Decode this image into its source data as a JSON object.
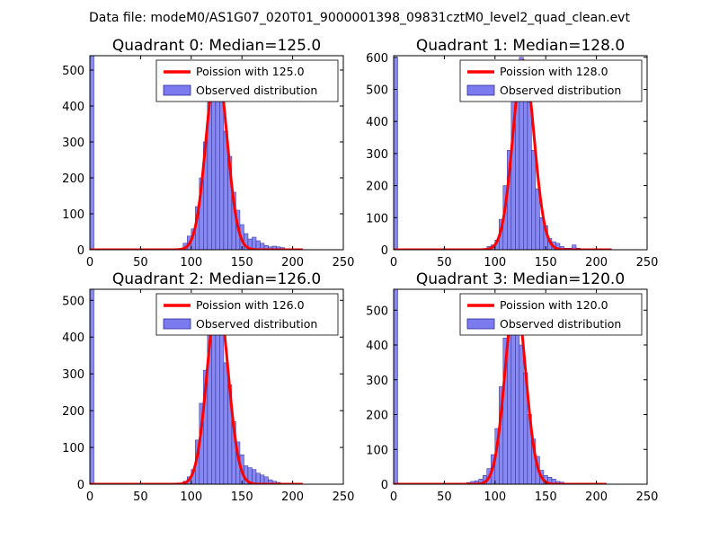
{
  "figure": {
    "suptitle": "Data file: modeM0/AS1G07_020T01_9000001398_09831cztM0_level2_quad_clean.evt"
  },
  "chart_data": [
    {
      "type": "bar",
      "title": "Quadrant 0: Median=125.0",
      "median": 125.0,
      "xlim": [
        0,
        250
      ],
      "ylim": [
        0,
        540
      ],
      "xticks": [
        0,
        50,
        100,
        150,
        200,
        250
      ],
      "yticks": [
        0,
        100,
        200,
        300,
        400,
        500
      ],
      "legend_position": "top-right",
      "series": [
        {
          "name": "Poission with 125.0",
          "kind": "line",
          "color": "#ff0000",
          "mean": 125.0,
          "peak": 515,
          "x_range": [
            0,
            210
          ]
        },
        {
          "name": "Observed distribution",
          "kind": "histogram",
          "color": "#7b7bef",
          "bin_width": 4,
          "edges": [
            0,
            4,
            8,
            12,
            16,
            20,
            24,
            28,
            32,
            36,
            40,
            44,
            48,
            52,
            56,
            60,
            64,
            68,
            72,
            76,
            80,
            84,
            88,
            92,
            96,
            100,
            104,
            108,
            112,
            116,
            120,
            124,
            128,
            132,
            136,
            140,
            144,
            148,
            152,
            156,
            160,
            164,
            168,
            172,
            176,
            180,
            184,
            188,
            192,
            196,
            200,
            204,
            208
          ],
          "counts": [
            540,
            0,
            0,
            0,
            0,
            0,
            0,
            0,
            0,
            0,
            0,
            0,
            0,
            0,
            0,
            0,
            0,
            0,
            0,
            0,
            0,
            2,
            3,
            18,
            38,
            58,
            120,
            200,
            300,
            410,
            510,
            490,
            420,
            330,
            260,
            160,
            110,
            70,
            45,
            30,
            35,
            25,
            18,
            12,
            8,
            10,
            8,
            6,
            3,
            2,
            1,
            1
          ]
        }
      ]
    },
    {
      "type": "bar",
      "title": "Quadrant 1: Median=128.0",
      "median": 128.0,
      "xlim": [
        0,
        250
      ],
      "ylim": [
        0,
        605
      ],
      "xticks": [
        0,
        50,
        100,
        150,
        200,
        250
      ],
      "yticks": [
        0,
        100,
        200,
        300,
        400,
        500,
        600
      ],
      "legend_position": "top-right",
      "series": [
        {
          "name": "Poission with 128.0",
          "kind": "line",
          "color": "#ff0000",
          "mean": 128.0,
          "peak": 590,
          "x_range": [
            0,
            215
          ]
        },
        {
          "name": "Observed distribution",
          "kind": "histogram",
          "color": "#7b7bef",
          "bin_width": 4,
          "edges": [
            0,
            4,
            8,
            12,
            16,
            20,
            24,
            28,
            32,
            36,
            40,
            44,
            48,
            52,
            56,
            60,
            64,
            68,
            72,
            76,
            80,
            84,
            88,
            92,
            96,
            100,
            104,
            108,
            112,
            116,
            120,
            124,
            128,
            132,
            136,
            140,
            144,
            148,
            152,
            156,
            160,
            164,
            168,
            172,
            176,
            180,
            184,
            188,
            192,
            196,
            200,
            204,
            208
          ],
          "counts": [
            600,
            0,
            0,
            0,
            0,
            0,
            0,
            0,
            0,
            0,
            0,
            0,
            0,
            0,
            0,
            0,
            0,
            0,
            0,
            0,
            0,
            0,
            0,
            10,
            15,
            30,
            95,
            200,
            310,
            480,
            470,
            600,
            590,
            460,
            310,
            190,
            100,
            75,
            35,
            25,
            20,
            10,
            5,
            5,
            15,
            5,
            3,
            2,
            1,
            1,
            0,
            0
          ]
        }
      ]
    },
    {
      "type": "bar",
      "title": "Quadrant 2: Median=126.0",
      "median": 126.0,
      "xlim": [
        0,
        250
      ],
      "ylim": [
        0,
        530
      ],
      "xticks": [
        0,
        50,
        100,
        150,
        200,
        250
      ],
      "yticks": [
        0,
        100,
        200,
        300,
        400,
        500
      ],
      "legend_position": "top-right",
      "series": [
        {
          "name": "Poission with 126.0",
          "kind": "line",
          "color": "#ff0000",
          "mean": 126.0,
          "peak": 510,
          "x_range": [
            0,
            210
          ]
        },
        {
          "name": "Observed distribution",
          "kind": "histogram",
          "color": "#7b7bef",
          "bin_width": 4,
          "edges": [
            0,
            4,
            8,
            12,
            16,
            20,
            24,
            28,
            32,
            36,
            40,
            44,
            48,
            52,
            56,
            60,
            64,
            68,
            72,
            76,
            80,
            84,
            88,
            92,
            96,
            100,
            104,
            108,
            112,
            116,
            120,
            124,
            128,
            132,
            136,
            140,
            144,
            148,
            152,
            156,
            160,
            164,
            168,
            172,
            176,
            180,
            184,
            188,
            192,
            196,
            200,
            204,
            208
          ],
          "counts": [
            530,
            0,
            0,
            0,
            0,
            0,
            0,
            0,
            0,
            0,
            0,
            0,
            0,
            0,
            0,
            0,
            0,
            0,
            0,
            0,
            0,
            0,
            0,
            8,
            20,
            40,
            120,
            220,
            310,
            420,
            510,
            495,
            410,
            330,
            270,
            170,
            115,
            80,
            50,
            45,
            40,
            30,
            25,
            20,
            12,
            8,
            5,
            3,
            2,
            1,
            1,
            0
          ]
        }
      ]
    },
    {
      "type": "bar",
      "title": "Quadrant 3: Median=120.0",
      "median": 120.0,
      "xlim": [
        0,
        250
      ],
      "ylim": [
        0,
        560
      ],
      "xticks": [
        0,
        50,
        100,
        150,
        200,
        250
      ],
      "yticks": [
        0,
        100,
        200,
        300,
        400,
        500
      ],
      "legend_position": "top-right",
      "series": [
        {
          "name": "Poission with 120.0",
          "kind": "line",
          "color": "#ff0000",
          "mean": 120.0,
          "peak": 540,
          "x_range": [
            0,
            210
          ]
        },
        {
          "name": "Observed distribution",
          "kind": "histogram",
          "color": "#7b7bef",
          "bin_width": 4,
          "edges": [
            0,
            4,
            8,
            12,
            16,
            20,
            24,
            28,
            32,
            36,
            40,
            44,
            48,
            52,
            56,
            60,
            64,
            68,
            72,
            76,
            80,
            84,
            88,
            92,
            96,
            100,
            104,
            108,
            112,
            116,
            120,
            124,
            128,
            132,
            136,
            140,
            144,
            148,
            152,
            156,
            160,
            164,
            168,
            172,
            176,
            180,
            184,
            188,
            192,
            196,
            200,
            204,
            208
          ],
          "counts": [
            560,
            0,
            0,
            0,
            0,
            0,
            0,
            0,
            0,
            0,
            0,
            0,
            0,
            0,
            0,
            0,
            0,
            3,
            5,
            8,
            10,
            15,
            25,
            45,
            85,
            160,
            280,
            420,
            520,
            545,
            490,
            400,
            320,
            200,
            130,
            80,
            40,
            25,
            20,
            15,
            8,
            6,
            3,
            2,
            1,
            0,
            0,
            0,
            0,
            0,
            0,
            0
          ]
        }
      ]
    }
  ]
}
